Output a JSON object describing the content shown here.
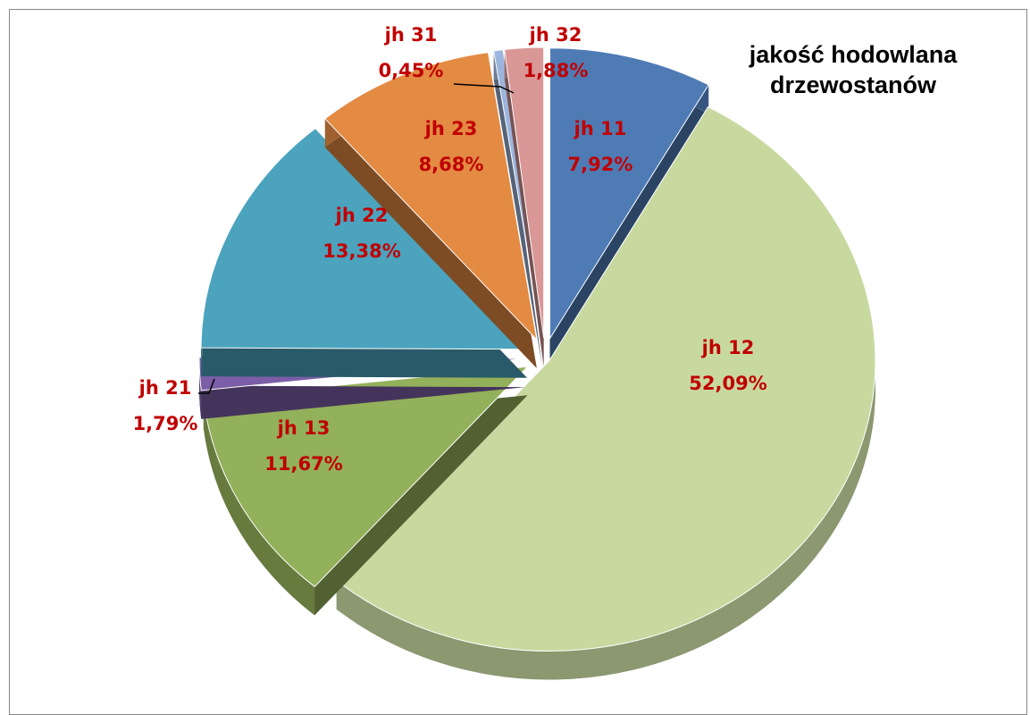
{
  "chart_data": {
    "type": "pie",
    "title": "jakość hodowlana drzewostanów",
    "categories": [
      "jh 11",
      "jh 12",
      "jh 13",
      "jh 21",
      "jh 22",
      "jh 23",
      "jh 31",
      "jh 32"
    ],
    "values": [
      7.92,
      52.09,
      11.67,
      1.79,
      13.38,
      8.68,
      0.45,
      1.88
    ],
    "value_labels": [
      "7,92%",
      "52,09%",
      "11,67%",
      "1,79%",
      "13,38%",
      "8,68%",
      "0,45%",
      "1,88%"
    ],
    "colors": [
      "#4f7bb5",
      "#c8d9a0",
      "#93b05a",
      "#7b5ea7",
      "#4ba3be",
      "#e38a43",
      "#9db5dc",
      "#d99795"
    ]
  }
}
